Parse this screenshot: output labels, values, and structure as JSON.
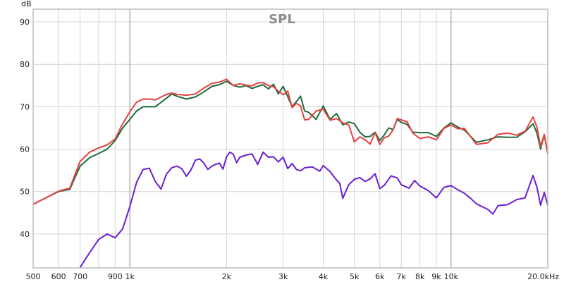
{
  "chart_data": {
    "type": "line",
    "title": "SPL",
    "ylabel": "dB",
    "xlabel": "",
    "xscale": "log",
    "xlim": [
      500,
      20000
    ],
    "ylim": [
      32,
      93
    ],
    "grid": true,
    "y_ticks": [
      40,
      50,
      60,
      70,
      80,
      90
    ],
    "x_ticks": [
      {
        "value": 500,
        "label": "500",
        "major": false
      },
      {
        "value": 600,
        "label": "600",
        "major": false
      },
      {
        "value": 700,
        "label": "700",
        "major": false
      },
      {
        "value": 800,
        "label": "",
        "major": false
      },
      {
        "value": 900,
        "label": "900",
        "major": false
      },
      {
        "value": 1000,
        "label": "1k",
        "major": true
      },
      {
        "value": 2000,
        "label": "2k",
        "major": false
      },
      {
        "value": 3000,
        "label": "3k",
        "major": false
      },
      {
        "value": 4000,
        "label": "4k",
        "major": false
      },
      {
        "value": 5000,
        "label": "5k",
        "major": false
      },
      {
        "value": 6000,
        "label": "6k",
        "major": false
      },
      {
        "value": 7000,
        "label": "7k",
        "major": false
      },
      {
        "value": 8000,
        "label": "8k",
        "major": false
      },
      {
        "value": 9000,
        "label": "9k",
        "major": false
      },
      {
        "value": 10000,
        "label": "10k",
        "major": true
      },
      {
        "value": 20000,
        "label": "20.0kHz",
        "major": false
      }
    ],
    "series": [
      {
        "color": "#1e6b3c",
        "points": [
          [
            500,
            47
          ],
          [
            550,
            48.6
          ],
          [
            600,
            50
          ],
          [
            650,
            50.5
          ],
          [
            700,
            56
          ],
          [
            750,
            58
          ],
          [
            800,
            59
          ],
          [
            850,
            60
          ],
          [
            900,
            62
          ],
          [
            950,
            65
          ],
          [
            1000,
            67
          ],
          [
            1050,
            69
          ],
          [
            1100,
            70
          ],
          [
            1150,
            70
          ],
          [
            1200,
            70
          ],
          [
            1300,
            72
          ],
          [
            1350,
            73
          ],
          [
            1400,
            72.5
          ],
          [
            1500,
            71.8
          ],
          [
            1600,
            72.3
          ],
          [
            1700,
            73.5
          ],
          [
            1800,
            74.8
          ],
          [
            1900,
            75.2
          ],
          [
            2000,
            76
          ],
          [
            2100,
            75
          ],
          [
            2200,
            74.6
          ],
          [
            2300,
            75
          ],
          [
            2400,
            74.3
          ],
          [
            2500,
            74.8
          ],
          [
            2600,
            75.2
          ],
          [
            2700,
            74.2
          ],
          [
            2800,
            75.3
          ],
          [
            2900,
            73
          ],
          [
            3000,
            74.8
          ],
          [
            3100,
            72.4
          ],
          [
            3200,
            70
          ],
          [
            3300,
            71.2
          ],
          [
            3400,
            72.5
          ],
          [
            3500,
            69
          ],
          [
            3600,
            68.7
          ],
          [
            3800,
            67
          ],
          [
            4000,
            70.2
          ],
          [
            4200,
            67
          ],
          [
            4400,
            68.4
          ],
          [
            4600,
            65.7
          ],
          [
            4800,
            66.4
          ],
          [
            5000,
            66
          ],
          [
            5200,
            64
          ],
          [
            5400,
            62.9
          ],
          [
            5600,
            63
          ],
          [
            5800,
            64
          ],
          [
            6000,
            62
          ],
          [
            6200,
            63.4
          ],
          [
            6400,
            65
          ],
          [
            6600,
            64.6
          ],
          [
            6800,
            67
          ],
          [
            7000,
            66.3
          ],
          [
            7300,
            65.8
          ],
          [
            7600,
            64
          ],
          [
            8000,
            63.9
          ],
          [
            8500,
            63.9
          ],
          [
            9000,
            63
          ],
          [
            9500,
            65
          ],
          [
            10000,
            66.2
          ],
          [
            10500,
            65.2
          ],
          [
            11000,
            64.5
          ],
          [
            12000,
            61.6
          ],
          [
            13000,
            62.2
          ],
          [
            14000,
            62.9
          ],
          [
            15000,
            62.8
          ],
          [
            16000,
            62.8
          ],
          [
            17000,
            64.1
          ],
          [
            18000,
            66
          ],
          [
            18500,
            63.8
          ],
          [
            19000,
            60
          ],
          [
            19500,
            63.4
          ],
          [
            20000,
            59
          ]
        ]
      },
      {
        "color": "#e84141",
        "points": [
          [
            500,
            47
          ],
          [
            550,
            48.6
          ],
          [
            600,
            50.1
          ],
          [
            650,
            50.8
          ],
          [
            700,
            57.1
          ],
          [
            750,
            59.3
          ],
          [
            800,
            60.3
          ],
          [
            850,
            61
          ],
          [
            900,
            62.4
          ],
          [
            950,
            66
          ],
          [
            1000,
            68.8
          ],
          [
            1050,
            71.1
          ],
          [
            1100,
            71.8
          ],
          [
            1150,
            71.8
          ],
          [
            1200,
            71.6
          ],
          [
            1300,
            72.9
          ],
          [
            1350,
            73.2
          ],
          [
            1400,
            72.9
          ],
          [
            1500,
            72.7
          ],
          [
            1600,
            73
          ],
          [
            1700,
            74.4
          ],
          [
            1800,
            75.5
          ],
          [
            1900,
            75.8
          ],
          [
            2000,
            76.5
          ],
          [
            2100,
            75
          ],
          [
            2200,
            75.4
          ],
          [
            2300,
            75.1
          ],
          [
            2400,
            74.9
          ],
          [
            2500,
            75.6
          ],
          [
            2600,
            75.7
          ],
          [
            2700,
            75
          ],
          [
            2800,
            74.7
          ],
          [
            2900,
            73.7
          ],
          [
            3000,
            72.8
          ],
          [
            3100,
            73.7
          ],
          [
            3200,
            69.8
          ],
          [
            3300,
            70.8
          ],
          [
            3400,
            70.2
          ],
          [
            3500,
            66.9
          ],
          [
            3600,
            67
          ],
          [
            3800,
            69
          ],
          [
            4000,
            69.4
          ],
          [
            4200,
            66.8
          ],
          [
            4400,
            67.2
          ],
          [
            4600,
            66.2
          ],
          [
            4800,
            65.7
          ],
          [
            5000,
            61.7
          ],
          [
            5200,
            62.9
          ],
          [
            5400,
            62.2
          ],
          [
            5600,
            61.2
          ],
          [
            5800,
            63.9
          ],
          [
            6000,
            61.1
          ],
          [
            6200,
            62.7
          ],
          [
            6400,
            63.1
          ],
          [
            6600,
            64.6
          ],
          [
            6800,
            67.2
          ],
          [
            7000,
            66.9
          ],
          [
            7300,
            66.4
          ],
          [
            7600,
            63.8
          ],
          [
            8000,
            62.5
          ],
          [
            8500,
            62.9
          ],
          [
            9000,
            62.2
          ],
          [
            9500,
            64.9
          ],
          [
            10000,
            65.7
          ],
          [
            10500,
            64.8
          ],
          [
            11000,
            64.9
          ],
          [
            12000,
            61.1
          ],
          [
            13000,
            61.5
          ],
          [
            14000,
            63.5
          ],
          [
            15000,
            63.8
          ],
          [
            16000,
            63.3
          ],
          [
            17000,
            64.2
          ],
          [
            18000,
            67.6
          ],
          [
            18500,
            65.2
          ],
          [
            19000,
            60.6
          ],
          [
            19500,
            63.5
          ],
          [
            20000,
            59
          ]
        ]
      },
      {
        "color": "#6a1fd1",
        "points": [
          [
            700,
            32.1
          ],
          [
            750,
            35.6
          ],
          [
            800,
            38.7
          ],
          [
            850,
            40
          ],
          [
            900,
            39.1
          ],
          [
            950,
            41.2
          ],
          [
            1000,
            46.5
          ],
          [
            1050,
            52.2
          ],
          [
            1100,
            55.2
          ],
          [
            1150,
            55.5
          ],
          [
            1200,
            52.4
          ],
          [
            1250,
            50.6
          ],
          [
            1300,
            54.1
          ],
          [
            1350,
            55.6
          ],
          [
            1400,
            56
          ],
          [
            1450,
            55.4
          ],
          [
            1500,
            53.6
          ],
          [
            1550,
            55.1
          ],
          [
            1600,
            57.4
          ],
          [
            1650,
            57.7
          ],
          [
            1700,
            56.7
          ],
          [
            1750,
            55.2
          ],
          [
            1800,
            56
          ],
          [
            1850,
            56.4
          ],
          [
            1900,
            56.7
          ],
          [
            1950,
            55.3
          ],
          [
            2000,
            58.2
          ],
          [
            2050,
            59.3
          ],
          [
            2100,
            58.8
          ],
          [
            2150,
            56.8
          ],
          [
            2200,
            58.1
          ],
          [
            2300,
            58.6
          ],
          [
            2400,
            58.9
          ],
          [
            2500,
            56.4
          ],
          [
            2600,
            59.3
          ],
          [
            2700,
            58.1
          ],
          [
            2800,
            58.2
          ],
          [
            2900,
            57
          ],
          [
            3000,
            58.1
          ],
          [
            3100,
            55.4
          ],
          [
            3200,
            56.6
          ],
          [
            3300,
            55.2
          ],
          [
            3400,
            54.9
          ],
          [
            3500,
            55.6
          ],
          [
            3700,
            55.8
          ],
          [
            3900,
            54.8
          ],
          [
            4000,
            56.1
          ],
          [
            4200,
            54.7
          ],
          [
            4400,
            52.7
          ],
          [
            4500,
            52
          ],
          [
            4600,
            48.4
          ],
          [
            4800,
            51.6
          ],
          [
            5000,
            52.9
          ],
          [
            5200,
            53.3
          ],
          [
            5400,
            52.4
          ],
          [
            5600,
            53
          ],
          [
            5800,
            54.2
          ],
          [
            6000,
            50.7
          ],
          [
            6200,
            51.5
          ],
          [
            6500,
            53.7
          ],
          [
            6800,
            53.2
          ],
          [
            7000,
            51.6
          ],
          [
            7400,
            50.8
          ],
          [
            7700,
            52.6
          ],
          [
            8000,
            51.3
          ],
          [
            8500,
            50.2
          ],
          [
            9000,
            48.5
          ],
          [
            9500,
            51
          ],
          [
            10000,
            51.4
          ],
          [
            10500,
            50.4
          ],
          [
            11000,
            49.6
          ],
          [
            11500,
            48.4
          ],
          [
            12000,
            47.1
          ],
          [
            13000,
            45.8
          ],
          [
            13500,
            44.7
          ],
          [
            14000,
            46.7
          ],
          [
            15000,
            46.9
          ],
          [
            16000,
            48.1
          ],
          [
            17000,
            48.5
          ],
          [
            18000,
            53.8
          ],
          [
            18500,
            51
          ],
          [
            19000,
            46.8
          ],
          [
            19500,
            49.8
          ],
          [
            20000,
            46.8
          ]
        ]
      }
    ]
  }
}
